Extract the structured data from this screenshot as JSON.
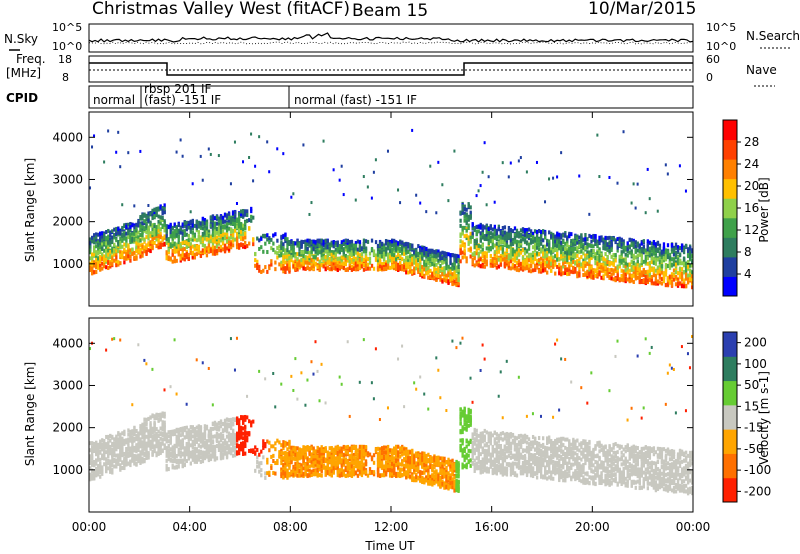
{
  "header": {
    "station": "Christmas Valley West (fitACF)",
    "beam": "Beam 15",
    "date": "10/Mar/2015"
  },
  "side_labels": {
    "nsky": "N.Sky",
    "nsearch": "N.Search",
    "freq_line1": "Freq.",
    "freq_line2": "[MHz]",
    "nave": "Nave",
    "cpid": "CPID"
  },
  "small_axes": {
    "noise_ticks": [
      "10^5",
      "10^0"
    ],
    "noise_right_ticks": [
      "10^5",
      "10^0"
    ],
    "freq_ticks": [
      "18",
      "8"
    ],
    "nave_ticks": [
      "60",
      "0"
    ]
  },
  "cpid_segments": [
    {
      "label": "normal",
      "start": 0.0
    },
    {
      "label": "rbsp 201 IF",
      "start": 2.4
    },
    {
      "label": "(fast) -151 IF",
      "start": 2.4
    },
    {
      "label": "normal (fast) -151 IF",
      "start": 7.9
    }
  ],
  "chart_data": [
    {
      "type": "heatmap",
      "name": "power",
      "ylabel": "Slant Range [km]",
      "xlabel": "Time UT",
      "xlim": [
        0,
        24
      ],
      "ylim": [
        0,
        4600
      ],
      "y_ticks": [
        1000,
        2000,
        3000,
        4000
      ],
      "colorbar_label": "Power [dB]",
      "colorbar_ticks": [
        4,
        8,
        12,
        16,
        20,
        24,
        28
      ],
      "colorbar_range": [
        0,
        32
      ],
      "colors": [
        "#0000ff",
        "#1f3fa0",
        "#2e7d5f",
        "#3fa14a",
        "#8fd04a",
        "#ffc000",
        "#ff8000",
        "#ff4000",
        "#ff0000"
      ]
    },
    {
      "type": "heatmap",
      "name": "velocity",
      "ylabel": "Slant Range [km]",
      "xlabel": "Time UT",
      "xlim": [
        0,
        24
      ],
      "ylim": [
        0,
        4600
      ],
      "y_ticks": [
        1000,
        2000,
        3000,
        4000
      ],
      "colorbar_label": "Velocity [m s-1]",
      "colorbar_ticks": [
        200,
        100,
        50,
        15,
        -15,
        -50,
        -100,
        -200
      ],
      "colors": [
        "#2b3fb0",
        "#2e7d5f",
        "#66cc33",
        "#c8c8c0",
        "#ffa500",
        "#ff7000",
        "#ff2000"
      ]
    }
  ],
  "x_axis": {
    "ticks": [
      "00:00",
      "04:00",
      "08:00",
      "12:00",
      "16:00",
      "20:00",
      "00:00"
    ],
    "label": "Time UT"
  }
}
